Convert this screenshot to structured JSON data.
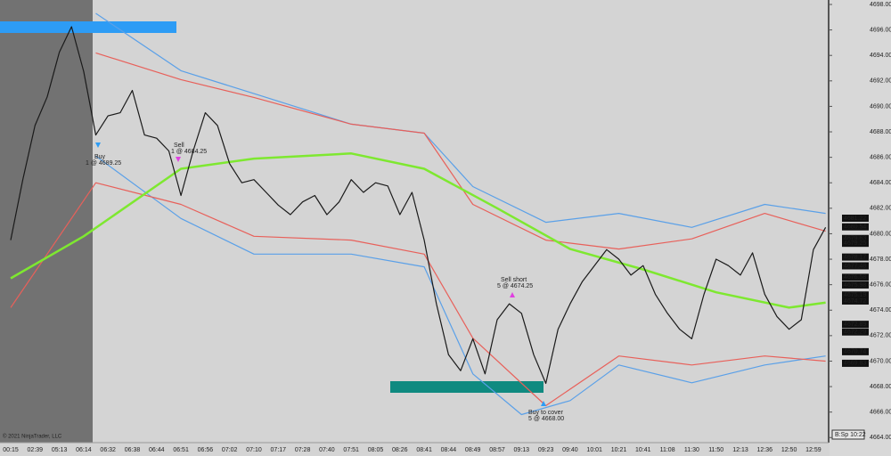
{
  "chart_data": {
    "type": "line",
    "categories": [
      "00:15",
      null,
      "02:39",
      null,
      "05:13",
      null,
      "06:14",
      null,
      "06:32",
      null,
      "06:38",
      null,
      "06:44",
      null,
      "06:51",
      null,
      "06:56",
      null,
      "07:02",
      null,
      "07:10",
      null,
      "07:17",
      null,
      "07:28",
      null,
      "07:40",
      null,
      "07:51",
      null,
      "08:05",
      null,
      "08:26",
      null,
      "08:41",
      null,
      "08:44",
      null,
      "08:49",
      null,
      "08:57",
      null,
      "09:13",
      null,
      "09:23",
      null,
      "09:40",
      null,
      "10:01",
      null,
      "10:21",
      null,
      "10:41",
      null,
      "11:08",
      null,
      "11:30",
      null,
      "11:50",
      null,
      "12:13",
      null,
      "12:36",
      null,
      "12:50",
      null,
      "12:59",
      null
    ],
    "series": [
      {
        "color": "#1a1a1a",
        "values": [
          4679.5,
          4684.25,
          4688.5,
          4690.75,
          4694.25,
          4696.25,
          4692.75,
          4687.75,
          4689.25,
          4689.5,
          4691.25,
          4687.75,
          4687.5,
          4686.5,
          4683,
          4686.5,
          4689.5,
          4688.5,
          4685.5,
          4684,
          4684.25,
          4683.25,
          4682.25,
          4681.5,
          4682.5,
          4683,
          4681.5,
          4682.5,
          4684.25,
          4683.25,
          4684,
          4683.75,
          4681.5,
          4683.25,
          4679.5,
          4674.5,
          4670.5,
          4669.25,
          4671.75,
          4669,
          4673.25,
          4674.5,
          4673.75,
          4670.5,
          4668.25,
          4672.5,
          4674.5,
          4676.25,
          4677.5,
          4678.75,
          4678,
          4676.75,
          4677.5,
          4675.25,
          4673.75,
          4672.5,
          4671.75,
          4675.25,
          4678,
          4677.5,
          4676.75,
          4678.5,
          4675.25,
          4673.5,
          4672.5,
          4673.25,
          4678.75,
          4680.5
        ]
      },
      {
        "color": "#7ee830",
        "x": [
          0,
          6,
          14,
          20,
          28,
          34,
          40,
          46,
          52,
          58,
          64,
          67
        ],
        "values": [
          4676.5,
          4679.8,
          4685.1,
          4685.9,
          4686.3,
          4685.1,
          4682.0,
          4678.8,
          4677.2,
          4675.4,
          4674.2,
          4674.6
        ]
      },
      {
        "color": "#e8605a",
        "x": [
          7,
          14,
          20,
          28,
          34,
          38,
          44,
          50,
          56,
          62,
          67
        ],
        "values": [
          4694.2,
          4692.1,
          4690.7,
          4688.6,
          4687.9,
          4682.3,
          4679.5,
          4678.8,
          4679.6,
          4681.6,
          4680.2
        ]
      },
      {
        "color": "#5aa0e8",
        "x": [
          7,
          14,
          20,
          28,
          34,
          38,
          44,
          50,
          56,
          62,
          67
        ],
        "values": [
          4697.3,
          4692.8,
          4691.0,
          4688.6,
          4687.9,
          4683.7,
          4680.9,
          4681.6,
          4680.5,
          4682.3,
          4681.6
        ]
      },
      {
        "color": "#e8605a",
        "x": [
          0,
          7,
          14,
          20,
          28,
          34,
          38,
          44,
          50,
          56,
          62,
          67
        ],
        "values": [
          4674.2,
          4684.0,
          4682.3,
          4679.8,
          4679.5,
          4678.4,
          4671.8,
          4666.5,
          4670.4,
          4669.7,
          4670.4,
          4670.0
        ]
      },
      {
        "color": "#5aa0e8",
        "x": [
          7,
          14,
          20,
          28,
          34,
          38,
          42,
          46,
          50,
          56,
          62,
          67
        ],
        "values": [
          4686.1,
          4681.2,
          4678.4,
          4678.4,
          4677.4,
          4669.0,
          4665.8,
          4666.9,
          4669.7,
          4668.3,
          4669.7,
          4670.4
        ]
      }
    ],
    "ylim": [
      4663.6,
      4698.35
    ],
    "yticks": [
      {
        "value": 4664,
        "label": "4664.00"
      },
      {
        "value": 4666,
        "label": "4666.00"
      },
      {
        "value": 4668,
        "label": "4668.00"
      },
      {
        "value": 4670,
        "label": "4670.00"
      },
      {
        "value": 4672,
        "label": "4672.00"
      },
      {
        "value": 4674,
        "label": "4674.00"
      },
      {
        "value": 4676,
        "label": "4676.00"
      },
      {
        "value": 4678,
        "label": "4678.00"
      },
      {
        "value": 4680,
        "label": "4680.00"
      },
      {
        "value": 4682,
        "label": "4682.00"
      },
      {
        "value": 4684,
        "label": "4684.00"
      },
      {
        "value": 4686,
        "label": "4686.00"
      },
      {
        "value": 4688,
        "label": "4688.00"
      },
      {
        "value": 4690,
        "label": "4690.00"
      },
      {
        "value": 4692,
        "label": "4692.00"
      },
      {
        "value": 4694,
        "label": "4694.00"
      },
      {
        "value": 4696,
        "label": "4696.00"
      },
      {
        "value": 4698,
        "label": "4698.00"
      }
    ],
    "price_markers": [
      4681.22,
      4680.54,
      4679.63,
      4679.25,
      4678.17,
      4677.48,
      4676.58,
      4675.98,
      4675.19,
      4674.72,
      4672.89,
      4672.29,
      4670.74,
      4669.83
    ],
    "annotations": [
      [
        "Buy",
        "1 @ 4689.25"
      ],
      [
        "Sell",
        "1 @ 4684.25"
      ],
      [
        "Sell short",
        "5 @ 4674.25"
      ],
      [
        "Buy to cover",
        "5 @ 4668.00"
      ]
    ],
    "copyright": "© 2021 NinjaTrader, LLC",
    "status": "B:Sp 10:22"
  }
}
